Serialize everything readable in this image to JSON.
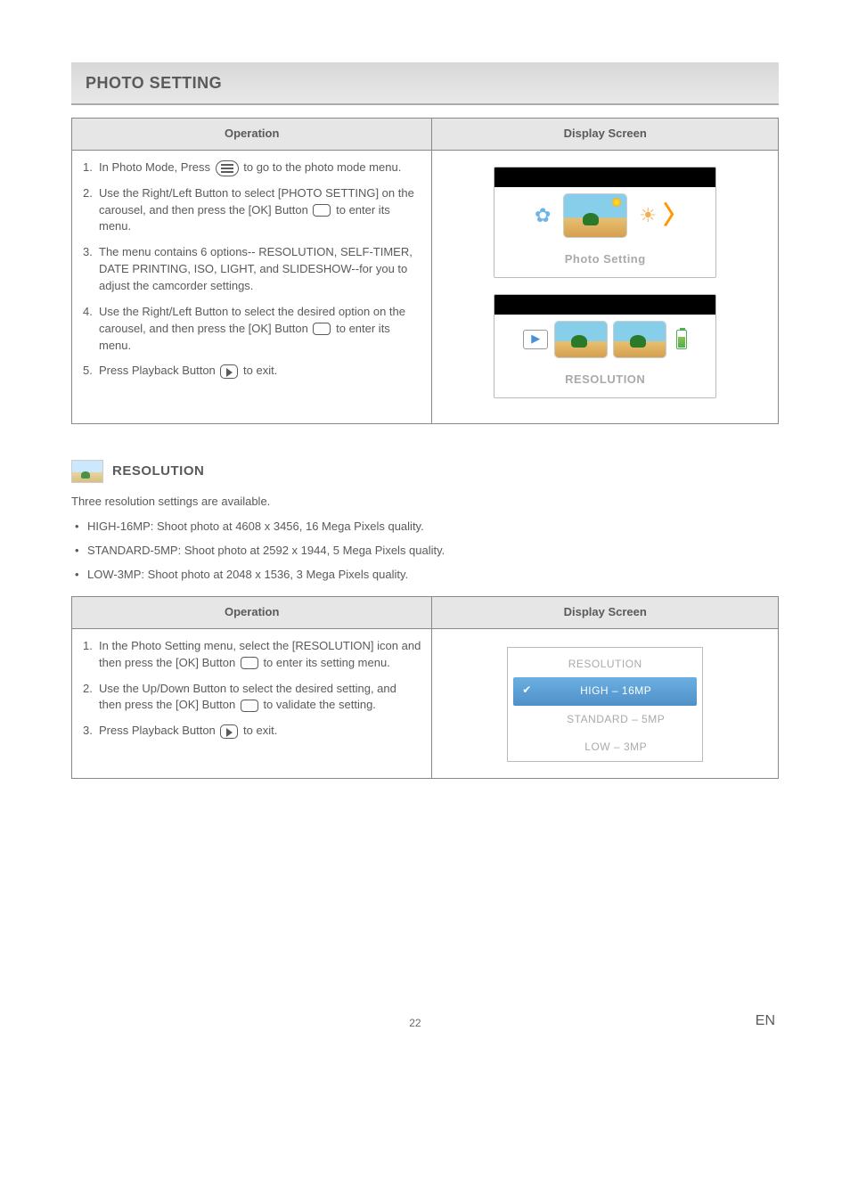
{
  "section_title": "PHOTO SETTING",
  "table1": {
    "headers": {
      "op": "Operation",
      "ds": "Display Screen"
    },
    "steps": [
      {
        "n": "1.",
        "a": "In Photo Mode, Press ",
        "b": " to go to the photo mode menu."
      },
      {
        "n": "2.",
        "a": "Use the Right/Left Button to select [PHOTO SETTING] on the carousel, and then press the [OK] Button ",
        "b": " to enter its menu."
      },
      {
        "n": "3.",
        "a": "The menu contains 6 options-- RESOLUTION, SELF-TIMER, DATE PRINTING, ISO, LIGHT, and SLIDESHOW--for you to adjust the camcorder settings.",
        "b": ""
      },
      {
        "n": "4.",
        "a": "Use the Right/Left Button to select the desired option on the carousel, and then press the [OK] Button ",
        "b": " to enter its menu."
      },
      {
        "n": "5.",
        "a": "Press Playback Button ",
        "b": " to exit."
      }
    ],
    "screen1_caption": "Photo Setting",
    "screen2_caption": "RESOLUTION"
  },
  "sub_title": "RESOLUTION",
  "res_intro": "Three resolution settings are available.",
  "res_bullets": [
    "HIGH-16MP: Shoot photo at 4608 x 3456, 16 Mega Pixels quality.",
    "STANDARD-5MP: Shoot photo at 2592 x 1944, 5 Mega Pixels quality.",
    "LOW-3MP: Shoot photo at 2048 x 1536, 3 Mega Pixels quality."
  ],
  "table2": {
    "headers": {
      "op": "Operation",
      "ds": "Display Screen"
    },
    "steps": [
      {
        "n": "1.",
        "a": "In the Photo Setting menu, select the [RESOLUTION] icon and then press the [OK] Button ",
        "b": " to enter its setting menu."
      },
      {
        "n": "2.",
        "a": "Use the Up/Down Button to select the desired setting, and then press the [OK] Button ",
        "b": " to validate the setting."
      },
      {
        "n": "3.",
        "a": "Press Playback Button ",
        "b": " to exit."
      }
    ],
    "menu": {
      "title": "RESOLUTION",
      "items": [
        "HIGH – 16MP",
        "STANDARD – 5MP",
        "LOW – 3MP"
      ]
    }
  },
  "page_number": "22",
  "lang": "EN",
  "colors": {
    "heading_bg_top": "#d8d8d8",
    "heading_border": "#aaaaaa",
    "table_border": "#888888",
    "th_bg": "#e6e6e6",
    "text": "#5a5a5a",
    "caption_gray": "#aaaaaa",
    "arrow_orange": "#ff9800",
    "sel_bg_top": "#6bb0e0",
    "sel_bg_bottom": "#5090c8"
  }
}
